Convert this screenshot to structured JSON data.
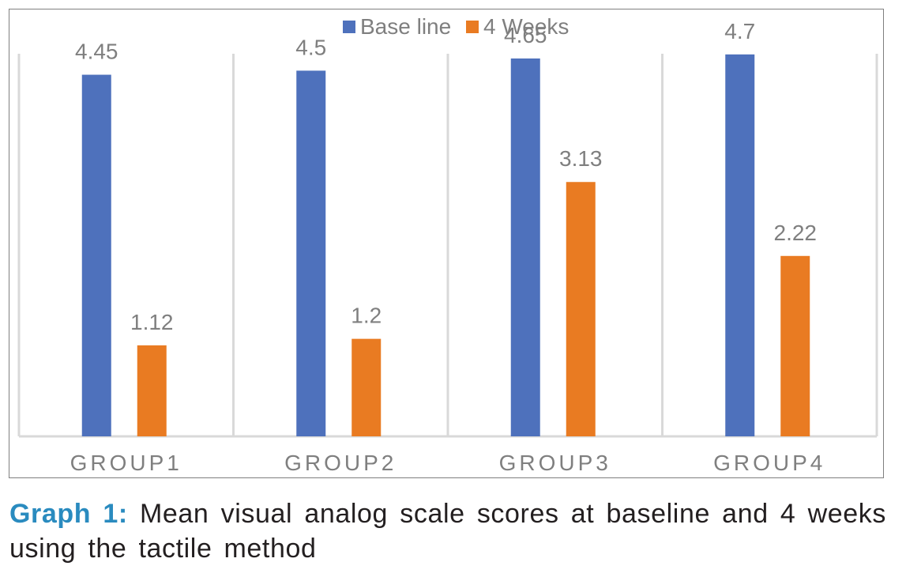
{
  "chart_data": {
    "type": "bar",
    "categories": [
      "GROUP1",
      "GROUP2",
      "GROUP3",
      "GROUP4"
    ],
    "series": [
      {
        "name": "Base line",
        "color": "#4e71bc",
        "values": [
          4.45,
          4.5,
          4.65,
          4.7
        ],
        "labels": [
          "4.45",
          "4.5",
          "4.65",
          "4.7"
        ]
      },
      {
        "name": "4 Weeks",
        "color": "#e97b22",
        "values": [
          1.12,
          1.2,
          3.13,
          2.22
        ],
        "labels": [
          "1.12",
          "1.2",
          "3.13",
          "2.22"
        ]
      }
    ],
    "ylim": [
      0,
      5
    ],
    "grid": "vertical separators between groups",
    "legend": "top-center",
    "xlabel": "",
    "ylabel": ""
  },
  "caption": {
    "label": "Graph 1:",
    "text": "Mean visual analog scale scores at baseline and 4 weeks using the tactile method"
  },
  "colors": {
    "axis": "#d9d9d9",
    "labels": "#7f7f7f",
    "caption_label": "#2a8bbf"
  }
}
